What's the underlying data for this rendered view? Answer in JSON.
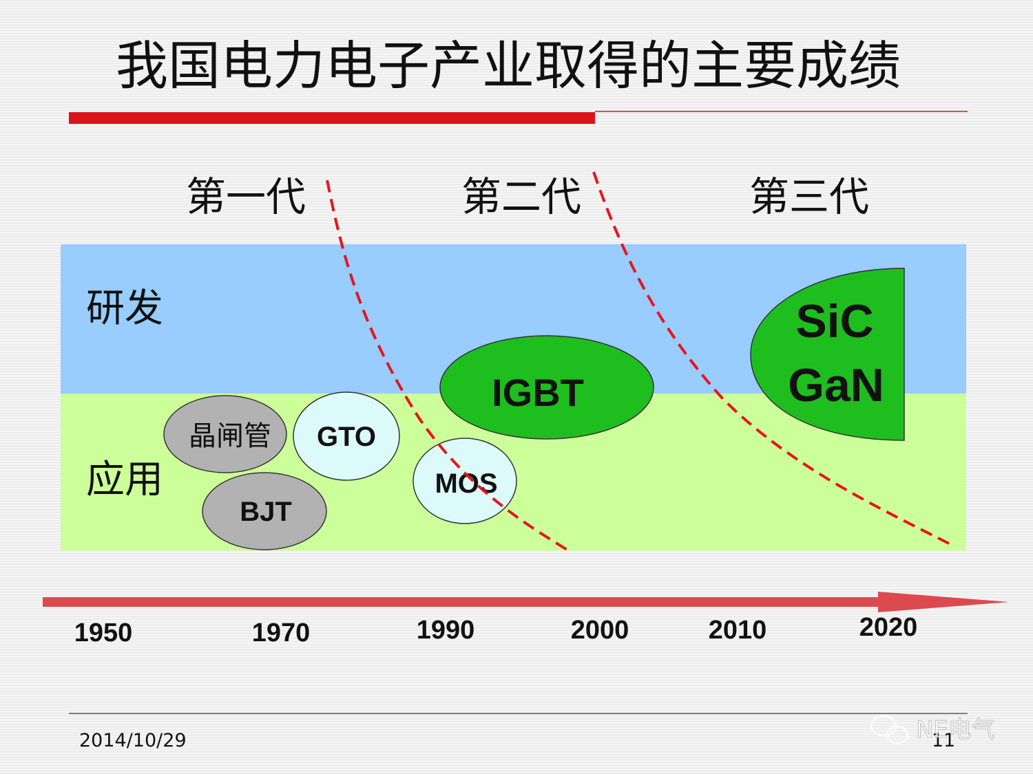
{
  "header": {
    "title": "我国电力电子产业取得的主要成绩"
  },
  "generations": [
    "第一代",
    "第二代",
    "第三代"
  ],
  "rows": [
    "研发",
    "应用"
  ],
  "devices": [
    "晶闸管",
    "GTO",
    "BJT",
    "MOS",
    "IGBT",
    "SiC",
    "GaN"
  ],
  "years": [
    "1950",
    "1970",
    "1990",
    "2000",
    "2010",
    "2020"
  ],
  "footer": {
    "date": "2014/10/29",
    "page": "11",
    "watermark": "NE电气"
  }
}
